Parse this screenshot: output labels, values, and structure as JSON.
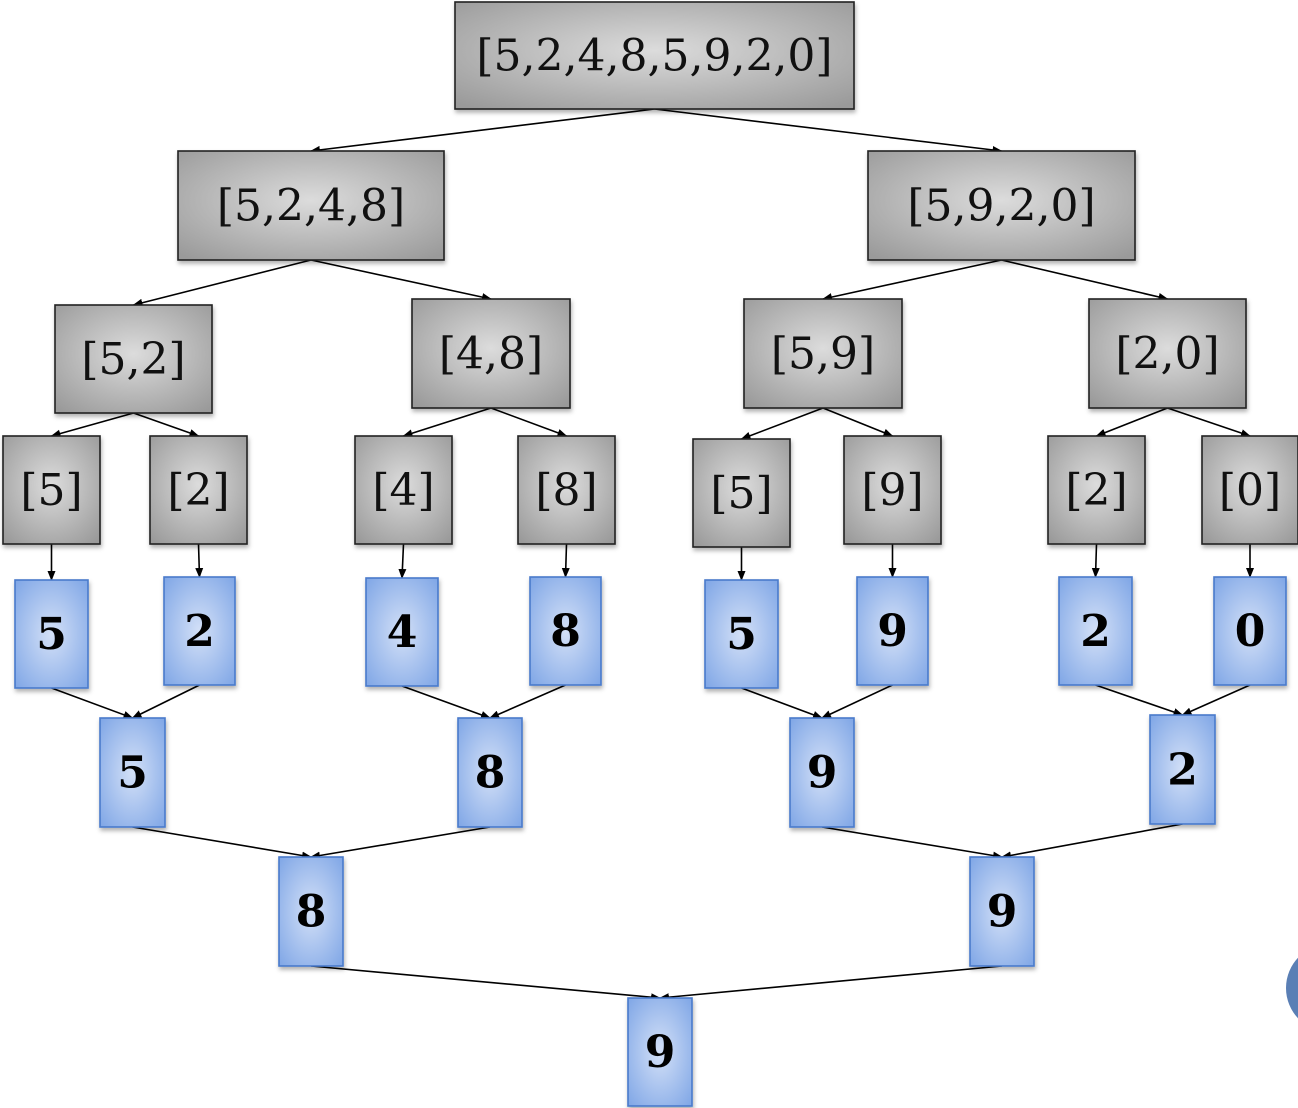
{
  "colors": {
    "split_fill": "#c8c8c8",
    "split_border": "#222222",
    "value_fill": "#a9c4f0",
    "value_border": "#4a7acb",
    "edge": "#000000",
    "corner_circle": "#5a7fb5"
  },
  "split_nodes": {
    "root": "[5,2,4,8,5,9,2,0]",
    "l1a": "[5,2,4,8]",
    "l1b": "[5,9,2,0]",
    "l2a": "[5,2]",
    "l2b": "[4,8]",
    "l2c": "[5,9]",
    "l2d": "[2,0]",
    "l3a": "[5]",
    "l3b": "[2]",
    "l3c": "[4]",
    "l3d": "[8]",
    "l3e": "[5]",
    "l3f": "[9]",
    "l3g": "[2]",
    "l3h": "[0]"
  },
  "value_nodes": {
    "v1": "5",
    "v2": "2",
    "v3": "4",
    "v4": "8",
    "v5": "5",
    "v6": "9",
    "v7": "2",
    "v8": "0",
    "m1": "5",
    "m2": "8",
    "m3": "9",
    "m4": "2",
    "n1": "8",
    "n2": "9",
    "final": "9"
  },
  "edges": [
    [
      "root",
      "l1a"
    ],
    [
      "root",
      "l1b"
    ],
    [
      "l1a",
      "l2a"
    ],
    [
      "l1a",
      "l2b"
    ],
    [
      "l1b",
      "l2c"
    ],
    [
      "l1b",
      "l2d"
    ],
    [
      "l2a",
      "l3a"
    ],
    [
      "l2a",
      "l3b"
    ],
    [
      "l2b",
      "l3c"
    ],
    [
      "l2b",
      "l3d"
    ],
    [
      "l2c",
      "l3e"
    ],
    [
      "l2c",
      "l3f"
    ],
    [
      "l2d",
      "l3g"
    ],
    [
      "l2d",
      "l3h"
    ],
    [
      "l3a",
      "v1"
    ],
    [
      "l3b",
      "v2"
    ],
    [
      "l3c",
      "v3"
    ],
    [
      "l3d",
      "v4"
    ],
    [
      "l3e",
      "v5"
    ],
    [
      "l3f",
      "v6"
    ],
    [
      "l3g",
      "v7"
    ],
    [
      "l3h",
      "v8"
    ],
    [
      "v1",
      "m1"
    ],
    [
      "v2",
      "m1"
    ],
    [
      "v3",
      "m2"
    ],
    [
      "v4",
      "m2"
    ],
    [
      "v5",
      "m3"
    ],
    [
      "v6",
      "m3"
    ],
    [
      "v7",
      "m4"
    ],
    [
      "v8",
      "m4"
    ],
    [
      "m1",
      "n1"
    ],
    [
      "m2",
      "n1"
    ],
    [
      "m3",
      "n2"
    ],
    [
      "m4",
      "n2"
    ],
    [
      "n1",
      "final"
    ],
    [
      "n2",
      "final"
    ]
  ]
}
